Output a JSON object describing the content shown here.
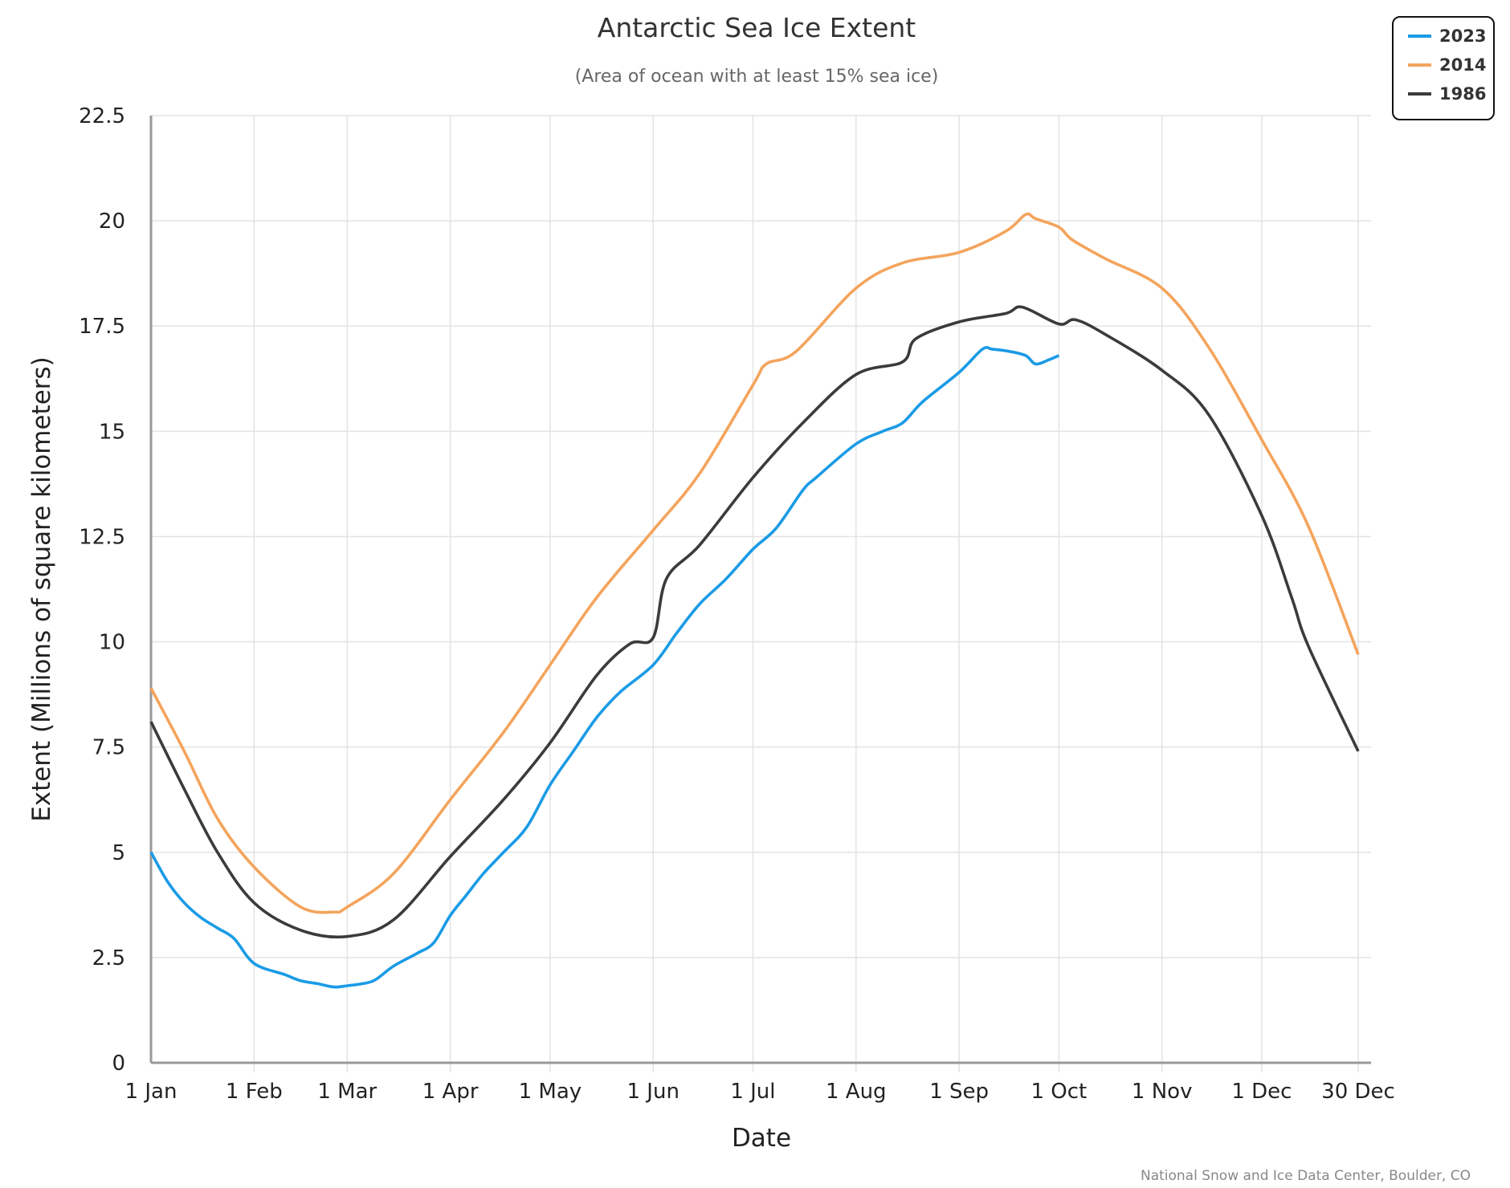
{
  "chart_data": {
    "type": "line",
    "title": "Antarctic Sea Ice Extent",
    "subtitle": "(Area of ocean with at least 15% sea ice)",
    "xlabel": "Date",
    "ylabel": "Extent (Millions of square kilometers)",
    "ylim": [
      0,
      22.5
    ],
    "xlim_day_of_year": [
      0,
      363
    ],
    "yticks": [
      "0",
      "2.5",
      "5",
      "7.5",
      "10",
      "12.5",
      "15",
      "17.5",
      "20",
      "22.5"
    ],
    "ytick_values": [
      0,
      2.5,
      5,
      7.5,
      10,
      12.5,
      15,
      17.5,
      20,
      22.5
    ],
    "xticks": [
      "1 Jan",
      "1 Feb",
      "1 Mar",
      "1 Apr",
      "1 May",
      "1 Jun",
      "1 Jul",
      "1 Aug",
      "1 Sep",
      "1 Oct",
      "1 Nov",
      "1 Dec",
      "30 Dec"
    ],
    "xtick_days": [
      0,
      31,
      59,
      90,
      120,
      151,
      181,
      212,
      243,
      273,
      304,
      334,
      363
    ],
    "grid": true,
    "legend_position": "top-right",
    "source": "National Snow and Ice Data Center, Boulder, CO",
    "series": [
      {
        "name": "2023",
        "color": "#1a9be6",
        "x": [
          0,
          5,
          10,
          15,
          20,
          25,
          31,
          40,
          45,
          50,
          55,
          59,
          65,
          68,
          73,
          80,
          85,
          90,
          95,
          100,
          106,
          113,
          120,
          127,
          134,
          141,
          151,
          158,
          165,
          173,
          181,
          188,
          196,
          200,
          212,
          220,
          226,
          232,
          243,
          250,
          253,
          258,
          263,
          266,
          270,
          273
        ],
        "y": [
          5.0,
          4.3,
          3.8,
          3.45,
          3.2,
          2.95,
          2.36,
          2.1,
          1.95,
          1.88,
          1.8,
          1.83,
          1.9,
          2.0,
          2.3,
          2.6,
          2.85,
          3.5,
          4.0,
          4.5,
          5.0,
          5.6,
          6.6,
          7.4,
          8.2,
          8.8,
          9.45,
          10.2,
          10.9,
          11.5,
          12.2,
          12.7,
          13.6,
          13.9,
          14.7,
          15.0,
          15.2,
          15.7,
          16.4,
          16.95,
          16.95,
          16.9,
          16.8,
          16.6,
          16.7,
          16.8
        ]
      },
      {
        "name": "2014",
        "color": "#f4a45c",
        "x": [
          0,
          10,
          20,
          31,
          45,
          55,
          59,
          73,
          90,
          106,
          120,
          134,
          151,
          165,
          181,
          185,
          194,
          212,
          226,
          243,
          257,
          263,
          266,
          273,
          277,
          287,
          304,
          318,
          334,
          348,
          363
        ],
        "y": [
          8.9,
          7.4,
          5.8,
          4.65,
          3.7,
          3.58,
          3.7,
          4.5,
          6.25,
          7.85,
          9.45,
          11.05,
          12.65,
          14.0,
          16.1,
          16.6,
          16.9,
          18.4,
          19.0,
          19.25,
          19.75,
          20.15,
          20.05,
          19.85,
          19.55,
          19.1,
          18.4,
          17.0,
          14.8,
          12.75,
          9.7
        ]
      },
      {
        "name": "1986",
        "color": "#3b3b3b",
        "x": [
          0,
          10,
          20,
          31,
          45,
          59,
          73,
          90,
          106,
          120,
          134,
          144,
          151,
          155,
          165,
          181,
          196,
          212,
          226,
          230,
          243,
          257,
          262,
          273,
          278,
          287,
          304,
          318,
          334,
          343,
          348,
          363
        ],
        "y": [
          8.1,
          6.5,
          5.0,
          3.8,
          3.15,
          3.0,
          3.4,
          4.9,
          6.25,
          7.6,
          9.2,
          9.95,
          10.1,
          11.5,
          12.3,
          13.9,
          15.2,
          16.35,
          16.65,
          17.2,
          17.6,
          17.8,
          17.95,
          17.55,
          17.65,
          17.3,
          16.45,
          15.4,
          13.0,
          11.05,
          9.9,
          7.4
        ]
      }
    ]
  }
}
